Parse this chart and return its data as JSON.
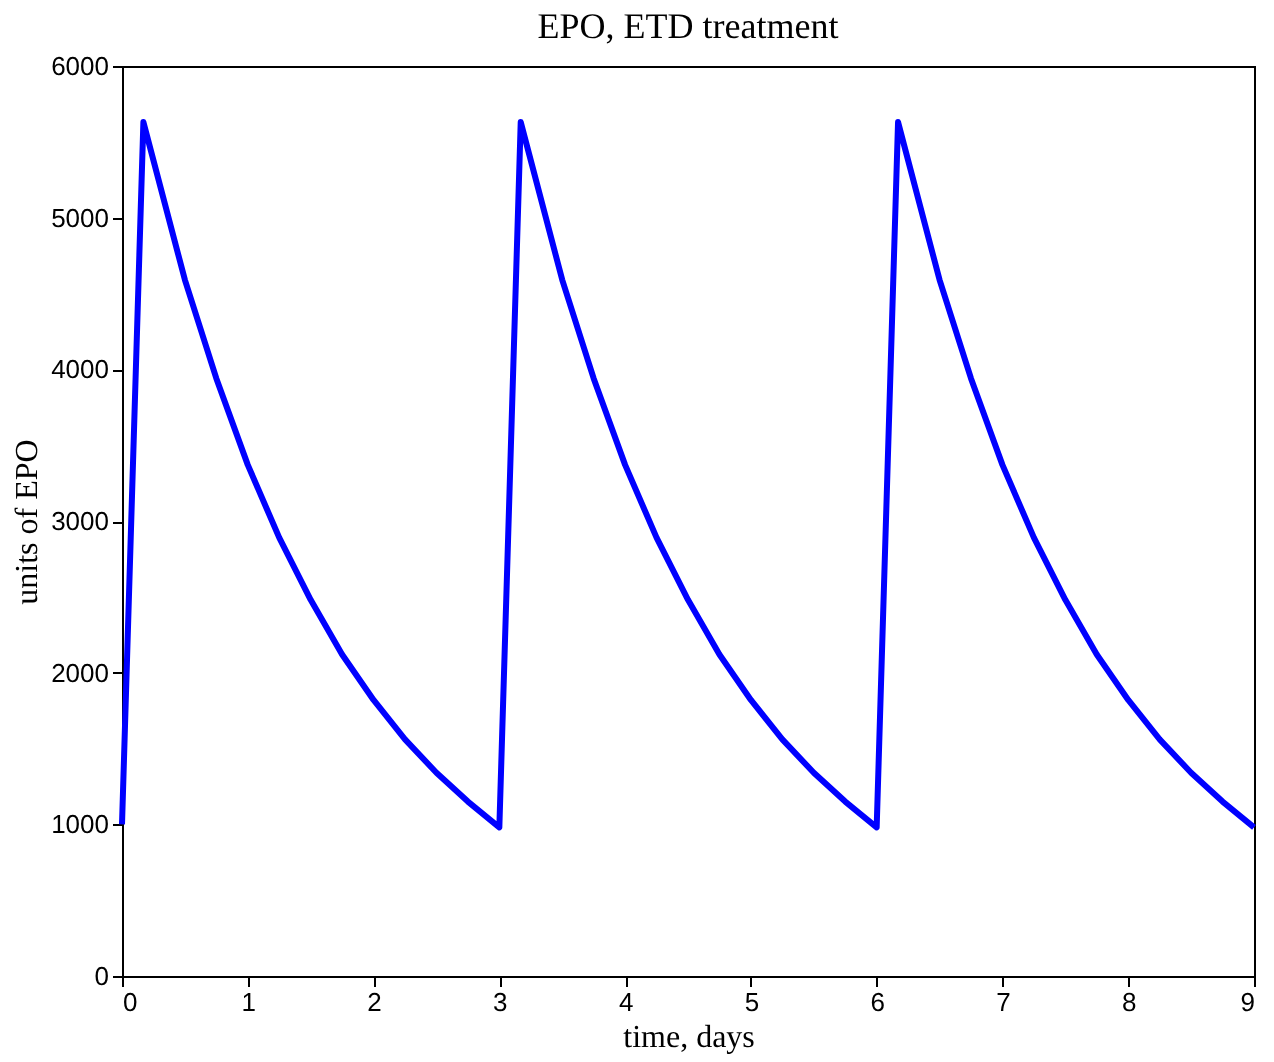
{
  "chart_data": {
    "type": "line",
    "title": "EPO, ETD treatment",
    "xlabel": "time, days",
    "ylabel": "units of EPO",
    "x": [
      0,
      0.17,
      0.5,
      0.75,
      1.0,
      1.25,
      1.5,
      1.75,
      2.0,
      2.25,
      2.5,
      2.75,
      3.0,
      3.17,
      3.5,
      3.75,
      4.0,
      4.25,
      4.5,
      4.75,
      5.0,
      5.25,
      5.5,
      5.75,
      6.0,
      6.17,
      6.5,
      6.75,
      7.0,
      7.25,
      7.5,
      7.75,
      8.0,
      8.25,
      8.5,
      8.75,
      9.0
    ],
    "series": [
      {
        "color": "#0000ff",
        "line_style": "solid",
        "marker": "none",
        "values": [
          1000,
          5630,
          4590,
          3940,
          3370,
          2890,
          2480,
          2120,
          1820,
          1560,
          1340,
          1150,
          980,
          5630,
          4590,
          3940,
          3370,
          2890,
          2480,
          2120,
          1820,
          1560,
          1340,
          1150,
          980,
          5630,
          4590,
          3940,
          3370,
          2890,
          2480,
          2120,
          1820,
          1560,
          1340,
          1150,
          980
        ]
      }
    ],
    "xlim": [
      0,
      9
    ],
    "xticks": [
      0,
      1,
      2,
      3,
      4,
      5,
      6,
      7,
      8,
      9
    ],
    "ylim": [
      0,
      6000
    ],
    "yticks": [
      0,
      1000,
      2000,
      3000,
      4000,
      5000,
      6000
    ],
    "grid": false
  }
}
